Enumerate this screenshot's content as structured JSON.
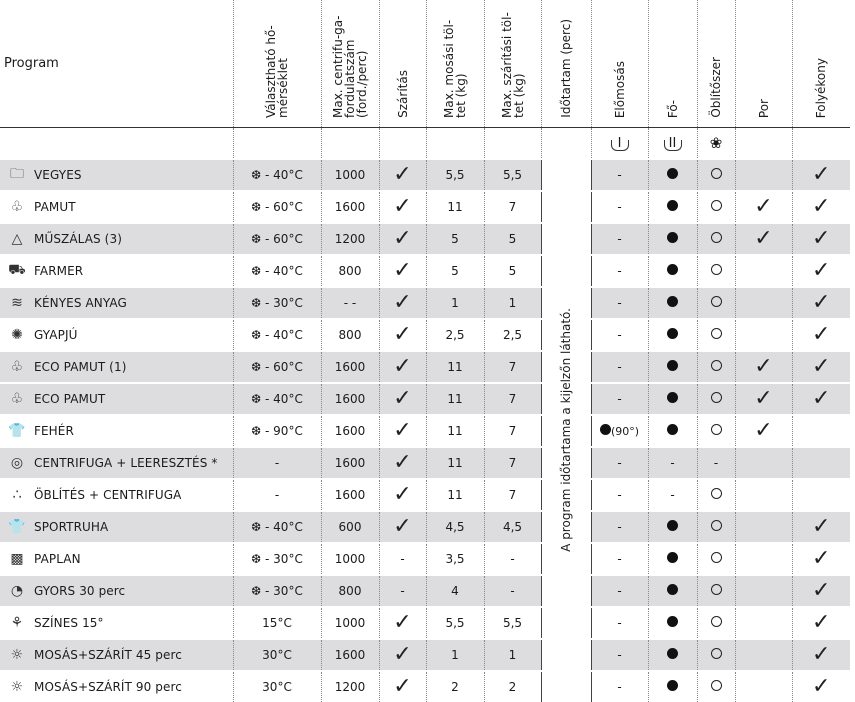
{
  "header": {
    "program": "Program",
    "temp": "Választható hő-mérséklet",
    "spin": "Max. centrifu-ga-fordulatszám (ford./perc)",
    "dry": "Szárítás",
    "wash_load": "Max. mosási töl-tet (kg)",
    "dry_load": "Max. szárítási töl-tet (kg)",
    "duration": "Időtartam (perc)",
    "prewash": "Előmosás",
    "main": "Fő-",
    "softener": "Öblítőszer",
    "powder": "Por",
    "liquid": "Folyékony"
  },
  "icons": {
    "prewash": "I",
    "main": "II",
    "softener": "❀"
  },
  "duration_note": "A program időtartama a kijelzőn látható.",
  "rows": [
    {
      "icon": "🗀",
      "name": "VEGYES",
      "temp": "❆ - 40°C",
      "spin": "1000",
      "dry": "✓",
      "wash": "5,5",
      "dryload": "5,5",
      "pre": "-",
      "main": "dot",
      "soft": "ring",
      "powder": "",
      "liquid": "✓",
      "shade": true
    },
    {
      "icon": "♧",
      "name": "PAMUT",
      "temp": "❆ - 60°C",
      "spin": "1600",
      "dry": "✓",
      "wash": "11",
      "dryload": "7",
      "pre": "-",
      "main": "dot",
      "soft": "ring",
      "powder": "✓",
      "liquid": "✓",
      "shade": false
    },
    {
      "icon": "△",
      "name": "MŰSZÁLAS (3)",
      "temp": "❆ - 60°C",
      "spin": "1200",
      "dry": "✓",
      "wash": "5",
      "dryload": "5",
      "pre": "-",
      "main": "dot",
      "soft": "ring",
      "powder": "✓",
      "liquid": "✓",
      "shade": true
    },
    {
      "icon": "⛟",
      "name": "FARMER",
      "temp": "❆ - 40°C",
      "spin": "800",
      "dry": "✓",
      "wash": "5",
      "dryload": "5",
      "pre": "-",
      "main": "dot",
      "soft": "ring",
      "powder": "",
      "liquid": "✓",
      "shade": false
    },
    {
      "icon": "≋",
      "name": "KÉNYES ANYAG",
      "temp": "❆ - 30°C",
      "spin": "- -",
      "dry": "✓",
      "wash": "1",
      "dryload": "1",
      "pre": "-",
      "main": "dot",
      "soft": "ring",
      "powder": "",
      "liquid": "✓",
      "shade": true
    },
    {
      "icon": "✺",
      "name": "GYAPJÚ",
      "temp": "❆ - 40°C",
      "spin": "800",
      "dry": "✓",
      "wash": "2,5",
      "dryload": "2,5",
      "pre": "-",
      "main": "dot",
      "soft": "ring",
      "powder": "",
      "liquid": "✓",
      "shade": false
    },
    {
      "icon": "♧",
      "name": "ECO PAMUT (1)",
      "temp": "❆ - 60°C",
      "spin": "1600",
      "dry": "✓",
      "wash": "11",
      "dryload": "7",
      "pre": "-",
      "main": "dot",
      "soft": "ring",
      "powder": "✓",
      "liquid": "✓",
      "shade": true
    },
    {
      "icon": "♧",
      "name": "ECO PAMUT",
      "temp": "❆ - 40°C",
      "spin": "1600",
      "dry": "✓",
      "wash": "11",
      "dryload": "7",
      "pre": "-",
      "main": "dot",
      "soft": "ring",
      "powder": "✓",
      "liquid": "✓",
      "shade": true
    },
    {
      "icon": "👕",
      "name": "FEHÉR",
      "temp": "❆ - 90°C",
      "spin": "1600",
      "dry": "✓",
      "wash": "11",
      "dryload": "7",
      "pre": "dot90",
      "main": "dot",
      "soft": "ring",
      "powder": "✓",
      "liquid": "",
      "shade": false
    },
    {
      "icon": "◎",
      "name": "CENTRIFUGA + LEERESZTÉS *",
      "temp": "-",
      "spin": "1600",
      "dry": "✓",
      "wash": "11",
      "dryload": "7",
      "pre": "-",
      "main": "-",
      "soft": "-",
      "powder": "",
      "liquid": "",
      "shade": true
    },
    {
      "icon": "∴",
      "name": "ÖBLÍTÉS + CENTRIFUGA",
      "temp": "-",
      "spin": "1600",
      "dry": "✓",
      "wash": "11",
      "dryload": "7",
      "pre": "-",
      "main": "-",
      "soft": "ring",
      "powder": "",
      "liquid": "",
      "shade": false
    },
    {
      "icon": "👕",
      "name": "SPORTRUHA",
      "temp": "❆ - 40°C",
      "spin": "600",
      "dry": "✓",
      "wash": "4,5",
      "dryload": "4,5",
      "pre": "-",
      "main": "dot",
      "soft": "ring",
      "powder": "",
      "liquid": "✓",
      "shade": true
    },
    {
      "icon": "▩",
      "name": "PAPLAN",
      "temp": "❆ - 30°C",
      "spin": "1000",
      "dry": "-",
      "wash": "3,5",
      "dryload": "-",
      "pre": "-",
      "main": "dot",
      "soft": "ring",
      "powder": "",
      "liquid": "✓",
      "shade": false
    },
    {
      "icon": "◔",
      "name": "GYORS 30 perc",
      "temp": "❆ - 30°C",
      "spin": "800",
      "dry": "-",
      "wash": "4",
      "dryload": "-",
      "pre": "-",
      "main": "dot",
      "soft": "ring",
      "powder": "",
      "liquid": "✓",
      "shade": true
    },
    {
      "icon": "⚘",
      "name": "SZÍNES 15°",
      "temp": "15°C",
      "spin": "1000",
      "dry": "✓",
      "wash": "5,5",
      "dryload": "5,5",
      "pre": "-",
      "main": "dot",
      "soft": "ring",
      "powder": "",
      "liquid": "✓",
      "shade": false
    },
    {
      "icon": "☼",
      "name": "MOSÁS+SZÁRÍT 45 perc",
      "temp": "30°C",
      "spin": "1600",
      "dry": "✓",
      "wash": "1",
      "dryload": "1",
      "pre": "-",
      "main": "dot",
      "soft": "ring",
      "powder": "",
      "liquid": "✓",
      "shade": true
    },
    {
      "icon": "☼",
      "name": "MOSÁS+SZÁRÍT 90 perc",
      "temp": "30°C",
      "spin": "1200",
      "dry": "✓",
      "wash": "2",
      "dryload": "2",
      "pre": "-",
      "main": "dot",
      "soft": "ring",
      "powder": "",
      "liquid": "✓",
      "shade": false
    }
  ]
}
